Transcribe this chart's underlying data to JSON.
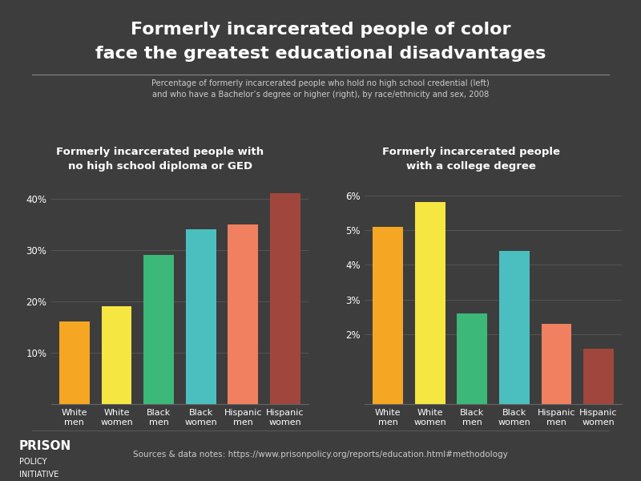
{
  "title_line1": "Formerly incarcerated people of color",
  "title_line2": "face the greatest educational disadvantages",
  "subtitle": "Percentage of formerly incarcerated people who hold no high school credential (left)\nand who have a Bachelor’s degree or higher (right), by race/ethnicity and sex, 2008",
  "left_title": "Formerly incarcerated people with\nno high school diploma or GED",
  "right_title": "Formerly incarcerated people\nwith a college degree",
  "categories": [
    "White\nmen",
    "White\nwomen",
    "Black\nmen",
    "Black\nwomen",
    "Hispanic\nmen",
    "Hispanic\nwomen"
  ],
  "left_values": [
    16,
    19,
    29,
    34,
    35,
    41
  ],
  "right_values": [
    5.1,
    5.8,
    2.6,
    4.4,
    2.3,
    1.6
  ],
  "bar_colors": [
    "#F5A623",
    "#F5E642",
    "#3CB878",
    "#4BBFBF",
    "#F08060",
    "#A0463C"
  ],
  "left_yticks": [
    10,
    20,
    30,
    40
  ],
  "left_ytick_labels": [
    "10%",
    "20%",
    "30%",
    "40%"
  ],
  "left_ylim": [
    0,
    44
  ],
  "right_yticks": [
    2,
    3,
    4,
    5,
    6
  ],
  "right_ytick_labels": [
    "2%",
    "3%",
    "4%",
    "5%",
    "6%"
  ],
  "right_ylim": [
    0,
    6.5
  ],
  "bg_color": "#3d3d3d",
  "text_color": "#ffffff",
  "grid_color": "#555555",
  "source_text": "Sources & data notes: https://www.prisonpolicy.org/reports/education.html#methodology"
}
